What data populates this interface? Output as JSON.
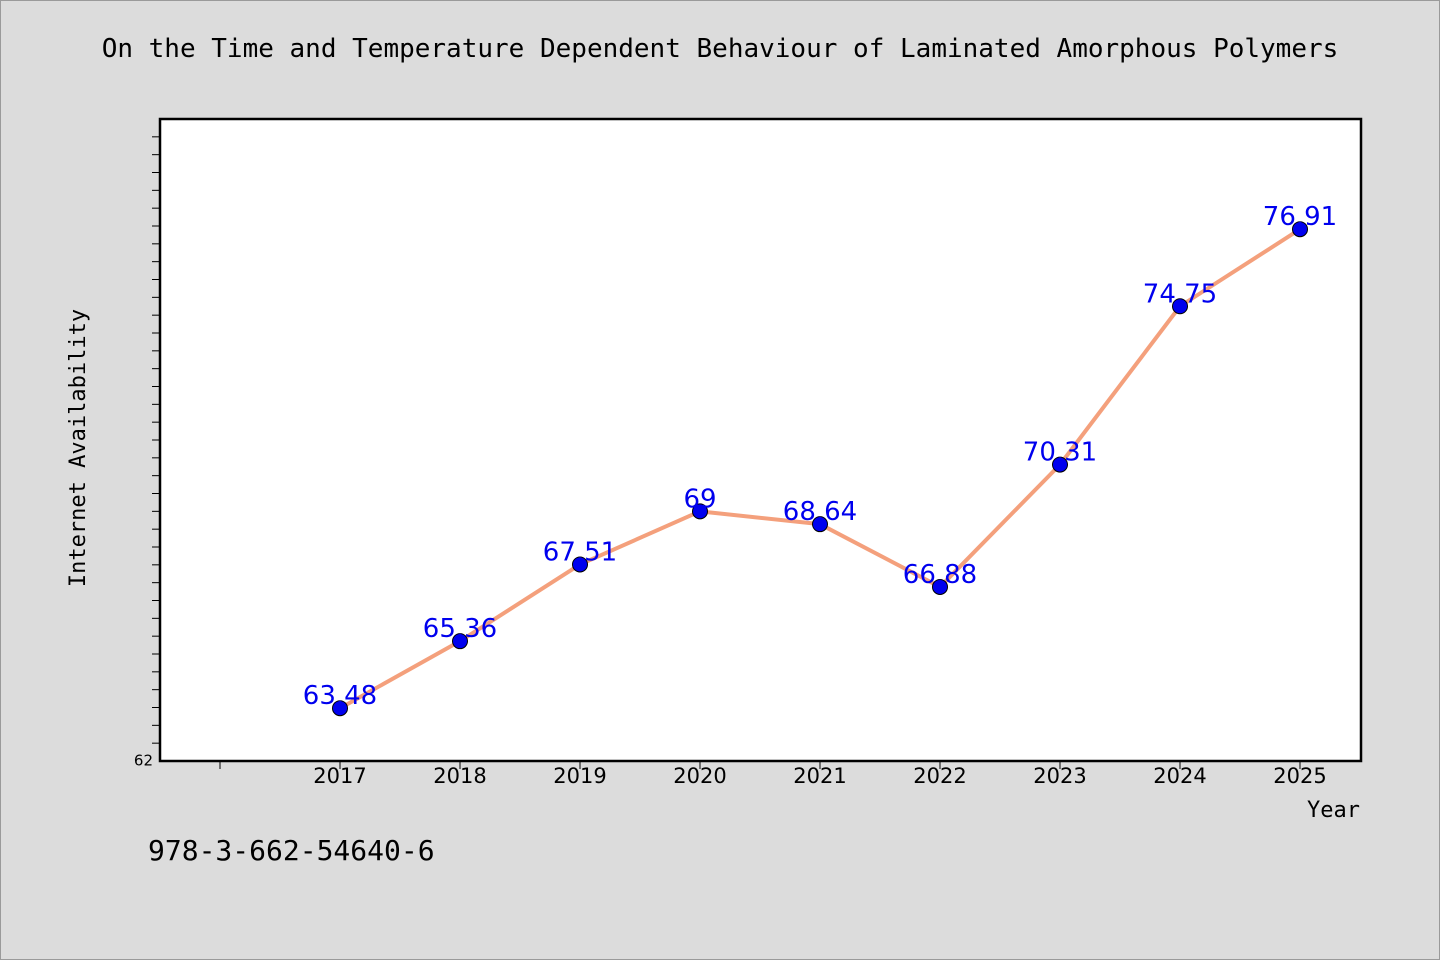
{
  "chart_data": {
    "type": "line",
    "title": "On the Time and Temperature Dependent Behaviour of Laminated Amorphous Polymers",
    "xlabel": "Year",
    "ylabel": "Internet Availability",
    "categories": [
      "2017",
      "2018",
      "2019",
      "2020",
      "2021",
      "2022",
      "2023",
      "2024",
      "2025"
    ],
    "series": [
      {
        "values": [
          63.48,
          65.36,
          67.51,
          69,
          68.64,
          66.88,
          70.31,
          74.75,
          76.91
        ],
        "data_labels": [
          "63.48",
          "65.36",
          "67.51",
          "69",
          "68.64",
          "66.88",
          "70.31",
          "74.75",
          "76.91"
        ]
      }
    ],
    "ylim": [
      62,
      80
    ],
    "y_tick_labels": [
      "62"
    ],
    "grid": false,
    "line_color": "#f4a07c",
    "marker_color": "#0000ee",
    "label_color": "#0000ee"
  },
  "footer": {
    "isbn": "978-3-662-54640-6"
  }
}
